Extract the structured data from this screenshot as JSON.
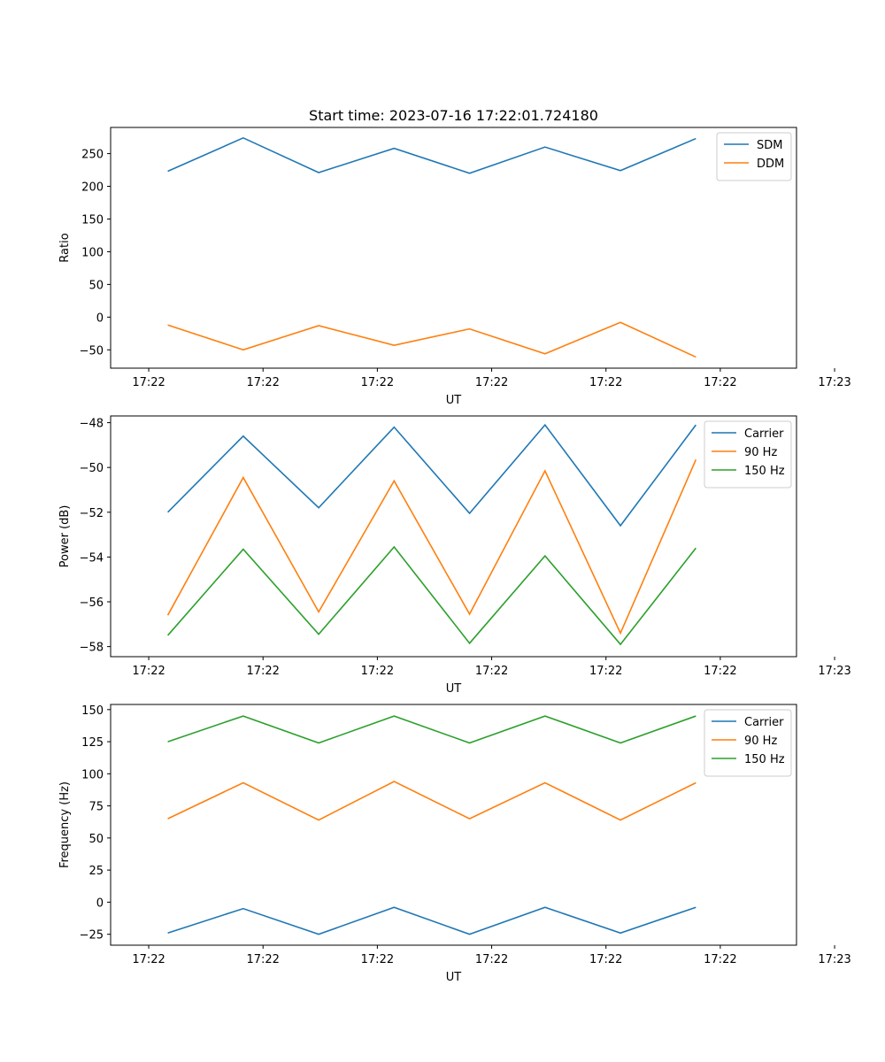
{
  "chart_data": [
    {
      "type": "line",
      "title": "Start time: 2023-07-16 17:22:01.724180",
      "xlabel": "UT",
      "ylabel": "Ratio",
      "xlim": [
        -0.5,
        8.5
      ],
      "ylim": [
        -78,
        290
      ],
      "x_ticks": [
        0,
        1.5,
        3,
        4.5,
        6,
        7.5,
        9
      ],
      "x_tick_labels": [
        "17:22",
        "17:22",
        "17:22",
        "17:22",
        "17:22",
        "17:22",
        "17:23"
      ],
      "y_ticks": [
        -50,
        0,
        50,
        100,
        150,
        200,
        250
      ],
      "y_tick_labels": [
        "−50",
        "0",
        "50",
        "100",
        "150",
        "200",
        "250"
      ],
      "legend_position": "upper right",
      "x": [
        0.25,
        1.24,
        2.23,
        3.22,
        4.21,
        5.2,
        6.19,
        7.18
      ],
      "series": [
        {
          "name": "SDM",
          "color": "#1f77b4",
          "values": [
            223,
            274,
            221,
            258,
            220,
            260,
            224,
            273
          ]
        },
        {
          "name": "DDM",
          "color": "#ff7f0e",
          "values": [
            -12,
            -50,
            -13,
            -43,
            -18,
            -56,
            -8,
            -61
          ]
        }
      ]
    },
    {
      "type": "line",
      "title": "",
      "xlabel": "UT",
      "ylabel": "Power (dB)",
      "xlim": [
        -0.5,
        8.5
      ],
      "ylim": [
        -58.45,
        -47.7
      ],
      "x_ticks": [
        0,
        1.5,
        3,
        4.5,
        6,
        7.5,
        9
      ],
      "x_tick_labels": [
        "17:22",
        "17:22",
        "17:22",
        "17:22",
        "17:22",
        "17:22",
        "17:23"
      ],
      "y_ticks": [
        -58,
        -56,
        -54,
        -52,
        -50,
        -48
      ],
      "y_tick_labels": [
        "−58",
        "−56",
        "−54",
        "−52",
        "−50",
        "−48"
      ],
      "legend_position": "upper right",
      "x": [
        0.25,
        1.24,
        2.23,
        3.22,
        4.21,
        5.2,
        6.19,
        7.18
      ],
      "series": [
        {
          "name": "Carrier",
          "color": "#1f77b4",
          "values": [
            -52.0,
            -48.6,
            -51.8,
            -48.2,
            -52.05,
            -48.1,
            -52.6,
            -48.1
          ]
        },
        {
          "name": "90 Hz",
          "color": "#ff7f0e",
          "values": [
            -56.6,
            -50.45,
            -56.45,
            -50.6,
            -56.55,
            -50.15,
            -57.4,
            -49.65
          ]
        },
        {
          "name": "150 Hz",
          "color": "#2ca02c",
          "values": [
            -57.5,
            -53.65,
            -57.45,
            -53.55,
            -57.85,
            -53.95,
            -57.9,
            -53.6
          ]
        }
      ]
    },
    {
      "type": "line",
      "title": "",
      "xlabel": "UT",
      "ylabel": "Frequency (Hz)",
      "xlim": [
        -0.5,
        8.5
      ],
      "ylim": [
        -33.5,
        154
      ],
      "x_ticks": [
        0,
        1.5,
        3,
        4.5,
        6,
        7.5,
        9
      ],
      "x_tick_labels": [
        "17:22",
        "17:22",
        "17:22",
        "17:22",
        "17:22",
        "17:22",
        "17:23"
      ],
      "y_ticks": [
        -25,
        0,
        25,
        50,
        75,
        100,
        125,
        150
      ],
      "y_tick_labels": [
        "−25",
        "0",
        "25",
        "50",
        "75",
        "100",
        "125",
        "150"
      ],
      "legend_position": "upper right",
      "x": [
        0.25,
        1.24,
        2.23,
        3.22,
        4.21,
        5.2,
        6.19,
        7.18
      ],
      "series": [
        {
          "name": "Carrier",
          "color": "#1f77b4",
          "values": [
            -24,
            -5,
            -25,
            -4,
            -25,
            -4,
            -24,
            -4
          ]
        },
        {
          "name": "90 Hz",
          "color": "#ff7f0e",
          "values": [
            65,
            93,
            64,
            94,
            65,
            93,
            64,
            93
          ]
        },
        {
          "name": "150 Hz",
          "color": "#2ca02c",
          "values": [
            125,
            145,
            124,
            145,
            124,
            145,
            124,
            145
          ]
        }
      ]
    }
  ]
}
